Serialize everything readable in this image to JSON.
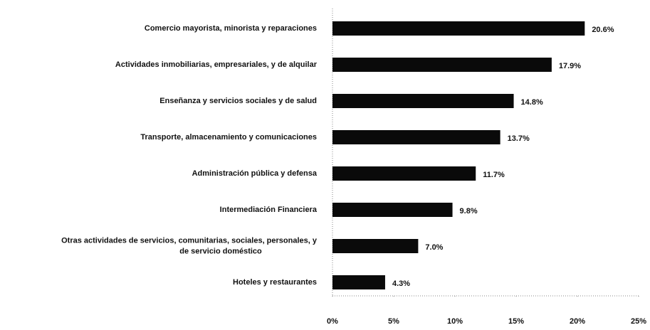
{
  "chart_data": {
    "type": "barh",
    "categories": [
      "Comercio mayorista, minorista  y reparaciones",
      "Actividades inmobiliarias, empresariales, y de alquilar",
      "Enseñanza y servicios sociales y de salud",
      "Transporte, almacenamiento y comunicaciones",
      "Administración pública y defensa",
      "Intermediación Financiera",
      "Otras actividades de servicios, comunitarias, sociales, personales, y\nde servicio doméstico",
      "Hoteles y restaurantes"
    ],
    "values": [
      20.6,
      17.9,
      14.8,
      13.7,
      11.7,
      9.8,
      7.0,
      4.3
    ],
    "value_labels": [
      "20.6%",
      "17.9%",
      "14.8%",
      "13.7%",
      "11.7%",
      "9.8%",
      "7.0%",
      "4.3%"
    ],
    "color": "#0a0a0a",
    "xlim": [
      0,
      25
    ],
    "xticks": [
      {
        "value": 0,
        "label": "0%"
      },
      {
        "value": 5,
        "label": "5%"
      },
      {
        "value": 10,
        "label": "10%"
      },
      {
        "value": 15,
        "label": "15%"
      },
      {
        "value": 20,
        "label": "20%"
      },
      {
        "value": 25,
        "label": "25%"
      }
    ]
  }
}
